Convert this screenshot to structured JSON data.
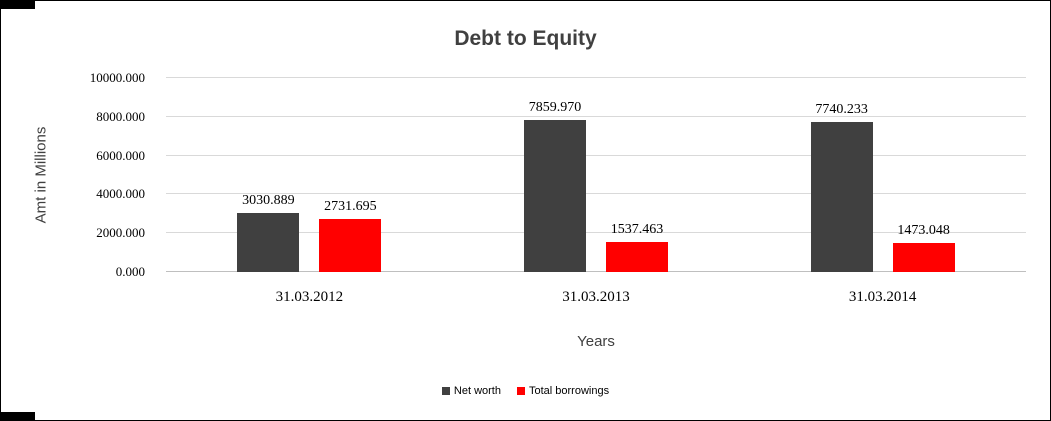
{
  "chart_data": {
    "type": "bar",
    "title": "Debt to Equity",
    "xlabel": "Years",
    "ylabel": "Amt in Millions",
    "categories": [
      "31.03.2012",
      "31.03.2013",
      "31.03.2014"
    ],
    "series": [
      {
        "name": "Net worth",
        "color": "#404040",
        "values": [
          3030.889,
          7859.97,
          7740.233
        ],
        "labels": [
          "3030.889",
          "7859.970",
          "7740.233"
        ]
      },
      {
        "name": "Total borrowings",
        "color": "#ff0000",
        "values": [
          2731.695,
          1537.463,
          1473.048
        ],
        "labels": [
          "2731.695",
          "1537.463",
          "1473.048"
        ]
      }
    ],
    "ylim": [
      0,
      10000
    ],
    "ytick_labels": [
      "0.000",
      "2000.000",
      "4000.000",
      "6000.000",
      "8000.000",
      "10000.000"
    ],
    "grid": true,
    "legend_position": "bottom"
  }
}
